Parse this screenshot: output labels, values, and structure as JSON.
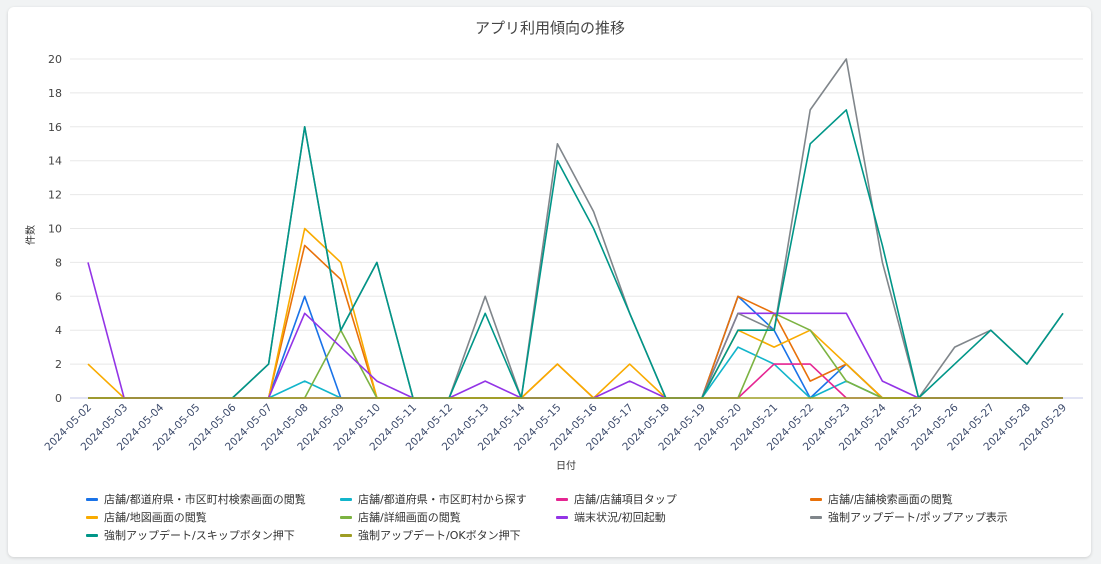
{
  "chart_data": {
    "type": "line",
    "title": "アプリ利用傾向の推移",
    "xlabel": "日付",
    "ylabel": "件数",
    "ylim": [
      0,
      20
    ],
    "yticks": [
      0,
      2,
      4,
      6,
      8,
      10,
      12,
      14,
      16,
      18,
      20
    ],
    "grid": true,
    "legend_position": "bottom",
    "x": [
      "2024-05-02",
      "2024-05-03",
      "2024-05-04",
      "2024-05-05",
      "2024-05-06",
      "2024-05-07",
      "2024-05-08",
      "2024-05-09",
      "2024-05-10",
      "2024-05-11",
      "2024-05-12",
      "2024-05-13",
      "2024-05-14",
      "2024-05-15",
      "2024-05-16",
      "2024-05-17",
      "2024-05-18",
      "2024-05-19",
      "2024-05-20",
      "2024-05-21",
      "2024-05-22",
      "2024-05-23",
      "2024-05-24",
      "2024-05-25",
      "2024-05-26",
      "2024-05-27",
      "2024-05-28",
      "2024-05-29"
    ],
    "series": [
      {
        "name": "店舗/都道府県・市区町村検索画面の閲覧",
        "color": "#1a73e8",
        "values": [
          0,
          0,
          0,
          0,
          0,
          0,
          6,
          0,
          0,
          0,
          0,
          0,
          0,
          0,
          0,
          0,
          0,
          0,
          6,
          4,
          0,
          2,
          0,
          0,
          0,
          0,
          0,
          0
        ]
      },
      {
        "name": "店舗/都道府県・市区町村から探す",
        "color": "#12b5cb",
        "values": [
          0,
          0,
          0,
          0,
          0,
          0,
          1,
          0,
          0,
          0,
          0,
          0,
          0,
          0,
          0,
          0,
          0,
          0,
          3,
          2,
          0,
          1,
          0,
          0,
          0,
          0,
          0,
          0
        ]
      },
      {
        "name": "店舗/店舗項目タップ",
        "color": "#e52592",
        "values": [
          0,
          0,
          0,
          0,
          0,
          0,
          0,
          0,
          0,
          0,
          0,
          0,
          0,
          0,
          0,
          0,
          0,
          0,
          0,
          2,
          2,
          0,
          0,
          0,
          0,
          0,
          0,
          0
        ]
      },
      {
        "name": "店舗/店舗検索画面の閲覧",
        "color": "#e8710a",
        "values": [
          0,
          0,
          0,
          0,
          0,
          0,
          9,
          7,
          0,
          0,
          0,
          0,
          0,
          2,
          0,
          0,
          0,
          0,
          6,
          5,
          1,
          2,
          0,
          0,
          0,
          0,
          0,
          0
        ]
      },
      {
        "name": "店舗/地図画面の閲覧",
        "color": "#f9ab00",
        "values": [
          2,
          0,
          0,
          0,
          0,
          0,
          10,
          8,
          0,
          0,
          0,
          0,
          0,
          2,
          0,
          2,
          0,
          0,
          4,
          3,
          4,
          2,
          0,
          0,
          0,
          0,
          0,
          0
        ]
      },
      {
        "name": "店舗/詳細画面の閲覧",
        "color": "#7cb342",
        "values": [
          0,
          0,
          0,
          0,
          0,
          0,
          0,
          4,
          0,
          0,
          0,
          0,
          0,
          0,
          0,
          0,
          0,
          0,
          0,
          5,
          4,
          1,
          0,
          0,
          0,
          0,
          0,
          0
        ]
      },
      {
        "name": "端末状況/初回起動",
        "color": "#9334e6",
        "values": [
          8,
          0,
          0,
          0,
          0,
          0,
          5,
          3,
          1,
          0,
          0,
          1,
          0,
          0,
          0,
          1,
          0,
          0,
          5,
          5,
          5,
          5,
          1,
          0,
          0,
          0,
          0,
          0
        ]
      },
      {
        "name": "強制アップデート/ポップアップ表示",
        "color": "#80868b",
        "values": [
          null,
          null,
          null,
          null,
          0,
          2,
          16,
          4,
          8,
          0,
          0,
          6,
          0,
          15,
          11,
          5,
          0,
          0,
          5,
          4,
          17,
          20,
          8,
          0,
          3,
          4,
          2,
          5
        ]
      },
      {
        "name": "強制アップデート/スキップボタン押下",
        "color": "#009688",
        "values": [
          null,
          null,
          null,
          null,
          0,
          2,
          16,
          4,
          8,
          0,
          0,
          5,
          0,
          14,
          10,
          5,
          0,
          0,
          4,
          4,
          15,
          17,
          9,
          0,
          2,
          4,
          2,
          5
        ]
      },
      {
        "name": "強制アップデート/OKボタン押下",
        "color": "#9e9d24",
        "values": [
          0,
          0,
          0,
          0,
          0,
          0,
          0,
          0,
          0,
          0,
          0,
          0,
          0,
          0,
          0,
          0,
          0,
          0,
          0,
          0,
          0,
          0,
          0,
          0,
          0,
          0,
          0,
          0
        ]
      }
    ]
  }
}
